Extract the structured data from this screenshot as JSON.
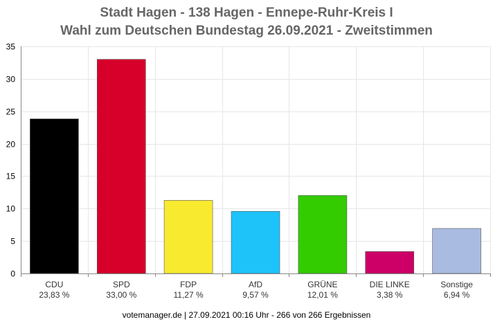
{
  "chart_data": {
    "type": "bar",
    "title_line1": "Stadt Hagen - 138 Hagen - Ennepe-Ruhr-Kreis I",
    "title_line2": "Wahl zum Deutschen Bundestag 26.09.2021  - Zweitstimmen",
    "categories": [
      "CDU",
      "SPD",
      "FDP",
      "AfD",
      "GRÜNE",
      "DIE LINKE",
      "Sonstige"
    ],
    "values": [
      23.83,
      33.0,
      11.27,
      9.57,
      12.01,
      3.38,
      6.94
    ],
    "value_labels": [
      "23,83 %",
      "33,00 %",
      "11,27 %",
      "9,57 %",
      "12,01 %",
      "3,38 %",
      "6,94 %"
    ],
    "colors": [
      "#000000",
      "#d7002a",
      "#f8ea2f",
      "#1ec3fa",
      "#33cc00",
      "#cc0066",
      "#aabbe1"
    ],
    "ylim": [
      0,
      35
    ],
    "yticks": [
      0,
      5,
      10,
      15,
      20,
      25,
      30,
      35
    ],
    "grid": true,
    "xlabel": "",
    "ylabel": ""
  },
  "footer": "votemanager.de | 27.09.2021 00:16 Uhr - 266 von 266 Ergebnissen"
}
